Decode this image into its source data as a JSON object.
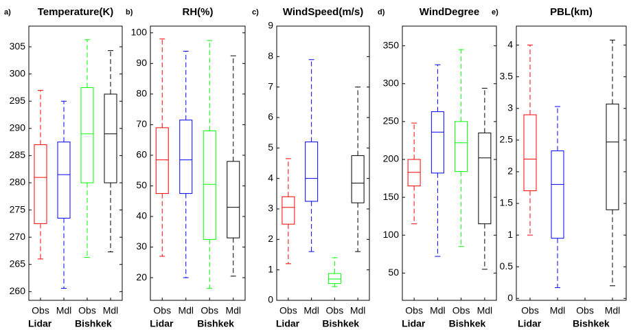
{
  "chart_data": [
    {
      "type": "box",
      "label": "a)",
      "title": "Temperature(K)",
      "categories": [
        "Obs",
        "Mdl",
        "Obs",
        "Mdl"
      ],
      "groups": [
        "Lidar",
        "Bishkek"
      ],
      "ylim": [
        258.4,
        308.8
      ],
      "yticks": [
        260,
        265,
        270,
        275,
        280,
        285,
        290,
        295,
        300,
        305
      ],
      "boxes": [
        {
          "color": "#ff0000",
          "values": [
            266,
            272.5,
            281,
            287,
            297
          ]
        },
        {
          "color": "#0000ff",
          "values": [
            260.6,
            273.5,
            281.5,
            287.5,
            295
          ]
        },
        {
          "color": "#00ff00",
          "values": [
            266.3,
            280,
            289,
            297.5,
            306.3
          ]
        },
        {
          "color": "#000000",
          "values": [
            267.3,
            280,
            289,
            296.3,
            304.3
          ]
        }
      ]
    },
    {
      "type": "box",
      "label": "b)",
      "title": "RH(%)",
      "categories": [
        "Obs",
        "Mdl",
        "Obs",
        "Mdl"
      ],
      "groups": [
        "Lidar",
        "Bishkek"
      ],
      "ylim": [
        12.6,
        102.2
      ],
      "yticks": [
        20,
        30,
        40,
        50,
        60,
        70,
        80,
        90,
        100
      ],
      "boxes": [
        {
          "color": "#ff0000",
          "values": [
            27,
            47.5,
            58.5,
            69,
            98
          ]
        },
        {
          "color": "#0000ff",
          "values": [
            20,
            47.5,
            58.5,
            71.5,
            94
          ]
        },
        {
          "color": "#00ff00",
          "values": [
            16.5,
            32.5,
            50.5,
            68,
            97.5
          ]
        },
        {
          "color": "#000000",
          "values": [
            20.5,
            33,
            43,
            58,
            92.5
          ]
        }
      ]
    },
    {
      "type": "box",
      "label": "c)",
      "title": "WindSpeed(m/s)",
      "categories": [
        "Obs",
        "Mdl",
        "Obs",
        "Mdl"
      ],
      "groups": [
        "Lidar",
        "Bishkek"
      ],
      "ylim": [
        0,
        9
      ],
      "yticks": [
        0,
        1,
        2,
        3,
        4,
        5,
        6,
        7,
        8,
        9
      ],
      "boxes": [
        {
          "color": "#ff0000",
          "values": [
            1.2,
            2.5,
            3.05,
            3.4,
            4.65
          ]
        },
        {
          "color": "#0000ff",
          "values": [
            1.6,
            3.25,
            4.0,
            5.2,
            7.9
          ]
        },
        {
          "color": "#00ff00",
          "values": [
            0.45,
            0.55,
            0.7,
            0.88,
            1.4
          ]
        },
        {
          "color": "#000000",
          "values": [
            1.6,
            3.2,
            3.85,
            4.75,
            7.0
          ]
        }
      ]
    },
    {
      "type": "box",
      "label": "d)",
      "title": "WindDegree",
      "categories": [
        "Obs",
        "Mdl",
        "Obs",
        "Mdl"
      ],
      "groups": [
        "Lidar",
        "Bishkek"
      ],
      "ylim": [
        14,
        376
      ],
      "yticks": [
        50,
        100,
        150,
        200,
        250,
        300,
        350
      ],
      "boxes": [
        {
          "color": "#ff0000",
          "values": [
            115,
            165,
            183,
            200,
            248
          ]
        },
        {
          "color": "#0000ff",
          "values": [
            72,
            182,
            236,
            263,
            325
          ]
        },
        {
          "color": "#00ff00",
          "values": [
            85,
            184,
            222,
            250,
            345
          ]
        },
        {
          "color": "#000000",
          "values": [
            55,
            115,
            202,
            235,
            294
          ]
        }
      ]
    },
    {
      "type": "box",
      "label": "e)",
      "title": "PBL(km)",
      "categories": [
        "Obs",
        "Mdl",
        "Obs",
        "Mdl"
      ],
      "groups": [
        "Lidar",
        "Bishkek"
      ],
      "ylim": [
        -0.03,
        4.3
      ],
      "yticks": [
        0,
        0.5,
        1,
        1.5,
        2,
        2.5,
        3,
        3.5,
        4
      ],
      "boxes": [
        {
          "color": "#ff0000",
          "values": [
            1.0,
            1.7,
            2.2,
            2.9,
            4.0
          ]
        },
        {
          "color": "#0000ff",
          "values": [
            0.17,
            0.95,
            1.8,
            2.33,
            3.03
          ]
        },
        {
          "color": "#00ff00",
          "values": null
        },
        {
          "color": "#000000",
          "values": [
            0.2,
            1.4,
            2.47,
            3.07,
            4.08
          ]
        }
      ]
    }
  ]
}
